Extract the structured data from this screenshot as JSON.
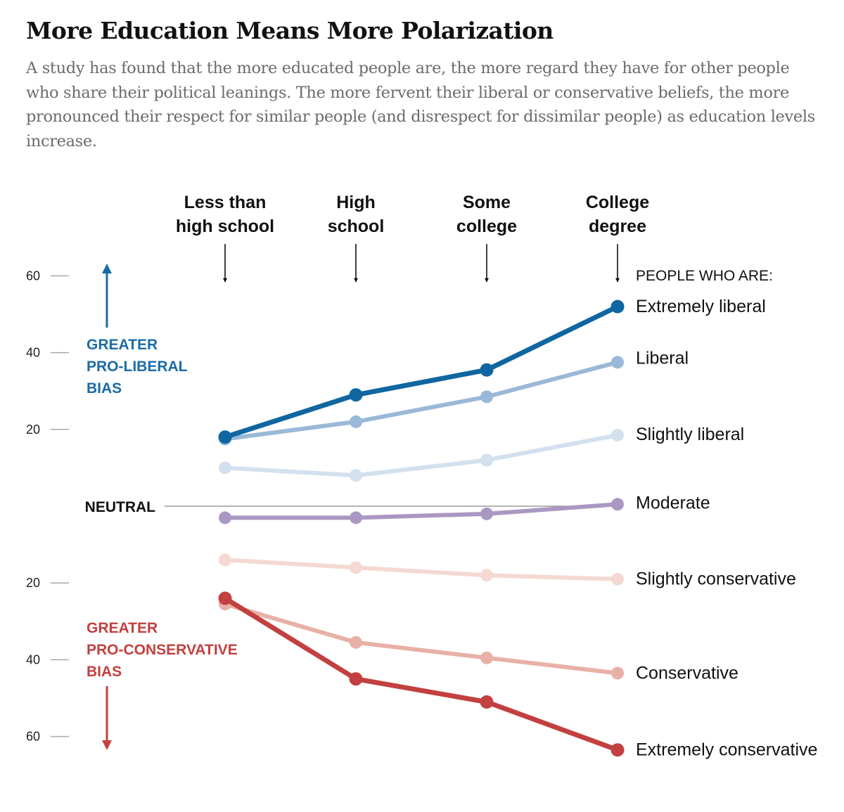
{
  "title": "More Education Means More Polarization",
  "subtitle": "A study has found that the more educated people are, the more regard they have for other people who share their political leanings. The more fervent their liberal or conservative beliefs, the more pronounced their respect for similar people (and disrespect for dissimilar people) as education levels increase.",
  "chart_data": {
    "type": "line",
    "categories": [
      [
        "Less than",
        "high school"
      ],
      [
        "High",
        "school"
      ],
      [
        "Some",
        "college"
      ],
      [
        "College",
        "degree"
      ]
    ],
    "y_ticks": [
      {
        "label": "60",
        "value": 60
      },
      {
        "label": "40",
        "value": 40
      },
      {
        "label": "20",
        "value": 20
      },
      {
        "label": "20",
        "value": -20
      },
      {
        "label": "40",
        "value": -40
      },
      {
        "label": "60",
        "value": -60
      }
    ],
    "ylim": [
      -68,
      68
    ],
    "neutral_label": "NEUTRAL",
    "liberal_bias_label": [
      "GREATER",
      "PRO-LIBERAL",
      "BIAS"
    ],
    "conservative_bias_label": [
      "GREATER",
      "PRO-CONSERVATIVE",
      "BIAS"
    ],
    "legend_header": "PEOPLE WHO ARE:",
    "grid": false,
    "colors": {
      "liberal_arrow": "#1a6ca8",
      "conservative_arrow": "#c2403f",
      "neutral_line": "#888888"
    },
    "series": [
      {
        "name": "Slightly conservative",
        "color": "#f4d9d2",
        "values": [
          -14,
          -16,
          -18,
          -19
        ]
      },
      {
        "name": "Slightly liberal",
        "color": "#d3e0ee",
        "values": [
          10,
          8,
          12,
          18.5
        ]
      },
      {
        "name": "Moderate",
        "color": "#aa98c3",
        "values": [
          -3,
          -3,
          -2,
          0.5
        ]
      },
      {
        "name": "Conservative",
        "color": "#e8b0a6",
        "values": [
          -25.5,
          -35.5,
          -39.5,
          -43.5
        ]
      },
      {
        "name": "Liberal",
        "color": "#9ab8d7",
        "values": [
          17.5,
          22,
          28.5,
          37.5
        ]
      },
      {
        "name": "Extremely conservative",
        "color": "#c2403f",
        "values": [
          -24,
          -45,
          -51,
          -63.5
        ]
      },
      {
        "name": "Extremely liberal",
        "color": "#0f66a1",
        "values": [
          18,
          29,
          35.5,
          52
        ]
      }
    ]
  }
}
